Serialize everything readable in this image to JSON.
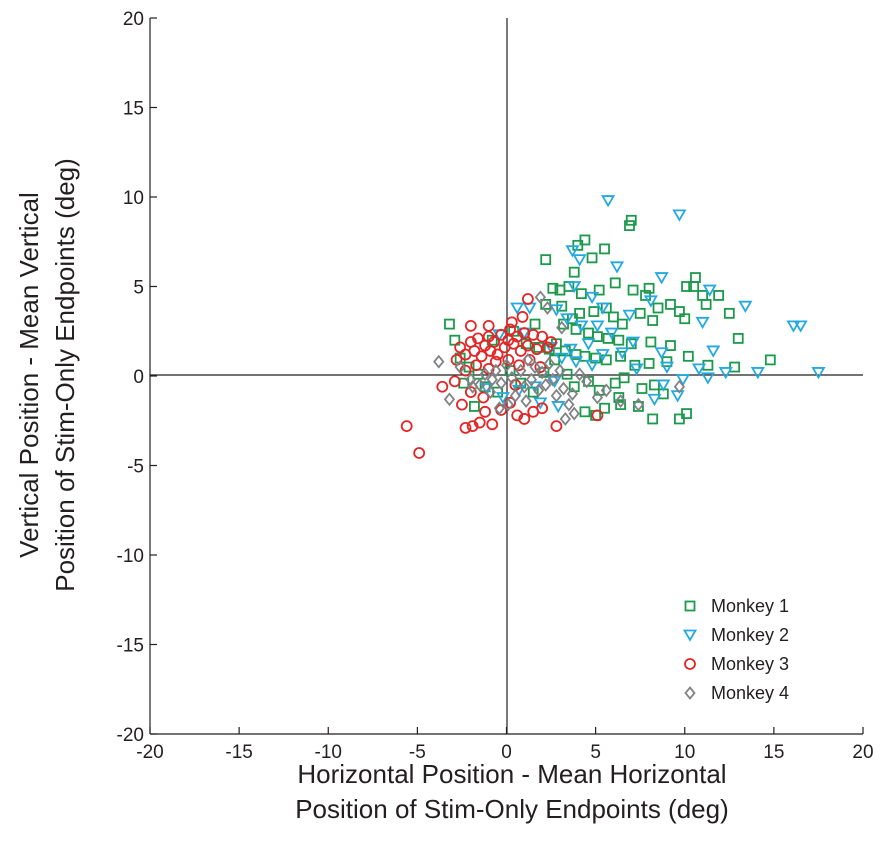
{
  "chart_data": {
    "type": "scatter",
    "xlim": [
      -20,
      20
    ],
    "ylim": [
      -20,
      20
    ],
    "xticks": [
      -20,
      -15,
      -10,
      -5,
      0,
      5,
      10,
      15,
      20
    ],
    "yticks": [
      -20,
      -15,
      -10,
      -5,
      0,
      5,
      10,
      15,
      20
    ],
    "xlabel": [
      "Horizontal Position - Mean Horizontal",
      "Position of Stim-Only Endpoints (deg)"
    ],
    "ylabel": [
      "Vertical Position - Mean Vertical",
      "Position of Stim-Only Endpoints (deg)"
    ],
    "reference_lines": {
      "x": 0,
      "y": 0
    },
    "legend_position": "bottom-right",
    "series": [
      {
        "name": "Monkey 1",
        "marker": "square",
        "color": "#1a9a4a",
        "points": [
          [
            4.4,
            7.6
          ],
          [
            6.9,
            8.4
          ],
          [
            7.0,
            8.7
          ],
          [
            4.0,
            7.3
          ],
          [
            2.2,
            6.5
          ],
          [
            4.8,
            6.6
          ],
          [
            5.5,
            7.1
          ],
          [
            3.8,
            5.8
          ],
          [
            3.5,
            5.0
          ],
          [
            2.6,
            4.9
          ],
          [
            3.0,
            4.8
          ],
          [
            4.2,
            4.6
          ],
          [
            5.2,
            4.8
          ],
          [
            6.1,
            5.2
          ],
          [
            7.1,
            4.8
          ],
          [
            7.8,
            4.5
          ],
          [
            8.0,
            4.9
          ],
          [
            8.5,
            3.8
          ],
          [
            9.2,
            4.0
          ],
          [
            10.1,
            5.0
          ],
          [
            10.6,
            5.5
          ],
          [
            10.5,
            5.0
          ],
          [
            11.0,
            4.5
          ],
          [
            11.9,
            4.5
          ],
          [
            11.2,
            4.0
          ],
          [
            12.5,
            3.5
          ],
          [
            2.2,
            4.0
          ],
          [
            3.1,
            3.9
          ],
          [
            3.7,
            3.2
          ],
          [
            4.1,
            3.5
          ],
          [
            4.9,
            3.6
          ],
          [
            5.6,
            3.8
          ],
          [
            6.0,
            3.3
          ],
          [
            6.5,
            2.9
          ],
          [
            7.5,
            3.5
          ],
          [
            8.2,
            3.1
          ],
          [
            9.7,
            3.6
          ],
          [
            10.0,
            3.2
          ],
          [
            3.2,
            2.9
          ],
          [
            3.9,
            2.6
          ],
          [
            4.6,
            2.4
          ],
          [
            5.1,
            2.2
          ],
          [
            5.7,
            2.1
          ],
          [
            6.3,
            2.0
          ],
          [
            7.0,
            1.8
          ],
          [
            8.1,
            1.9
          ],
          [
            9.2,
            1.7
          ],
          [
            1.1,
            1.8
          ],
          [
            1.8,
            1.6
          ],
          [
            2.4,
            1.5
          ],
          [
            2.8,
            1.8
          ],
          [
            3.3,
            1.4
          ],
          [
            3.9,
            1.2
          ],
          [
            4.4,
            1.1
          ],
          [
            5.0,
            1.0
          ],
          [
            5.6,
            0.9
          ],
          [
            6.4,
            1.1
          ],
          [
            7.2,
            0.6
          ],
          [
            8.0,
            0.7
          ],
          [
            9.0,
            0.8
          ],
          [
            10.2,
            1.1
          ],
          [
            11.3,
            0.6
          ],
          [
            12.8,
            0.5
          ],
          [
            14.8,
            0.9
          ],
          [
            13.0,
            2.1
          ],
          [
            -3.2,
            2.9
          ],
          [
            -2.9,
            2.0
          ],
          [
            -2.6,
            1.0
          ],
          [
            -2.1,
            0.5
          ],
          [
            -1.6,
            0.1
          ],
          [
            -2.4,
            -0.4
          ],
          [
            -1.8,
            -1.7
          ],
          [
            -1.2,
            -0.6
          ],
          [
            -0.5,
            -0.9
          ],
          [
            0.2,
            0.3
          ],
          [
            0.8,
            -0.4
          ],
          [
            1.5,
            -0.9
          ],
          [
            2.1,
            0.2
          ],
          [
            2.7,
            0.9
          ],
          [
            3.4,
            0.1
          ],
          [
            3.8,
            -0.6
          ],
          [
            4.6,
            -0.3
          ],
          [
            5.2,
            -0.8
          ],
          [
            6.1,
            -0.4
          ],
          [
            6.6,
            -0.1
          ],
          [
            7.6,
            -0.7
          ],
          [
            8.3,
            -0.5
          ],
          [
            8.8,
            -1.0
          ],
          [
            5.5,
            -1.8
          ],
          [
            6.4,
            -1.6
          ],
          [
            7.4,
            -1.7
          ],
          [
            4.4,
            -2.0
          ],
          [
            5.0,
            -2.2
          ],
          [
            9.7,
            -2.4
          ],
          [
            10.1,
            -2.1
          ],
          [
            8.2,
            -2.4
          ],
          [
            6.3,
            -1.2
          ],
          [
            -0.8,
            2.0
          ],
          [
            0.4,
            2.5
          ],
          [
            1.6,
            2.9
          ]
        ]
      },
      {
        "name": "Monkey 2",
        "marker": "triangle-down",
        "color": "#23a9e1",
        "points": [
          [
            5.7,
            9.8
          ],
          [
            9.7,
            9.0
          ],
          [
            3.7,
            7.0
          ],
          [
            6.2,
            6.1
          ],
          [
            4.1,
            6.5
          ],
          [
            8.7,
            5.5
          ],
          [
            11.4,
            4.8
          ],
          [
            3.8,
            5.0
          ],
          [
            4.8,
            4.4
          ],
          [
            8.1,
            4.2
          ],
          [
            13.4,
            3.9
          ],
          [
            5.4,
            3.8
          ],
          [
            6.9,
            3.4
          ],
          [
            11.0,
            3.0
          ],
          [
            16.1,
            2.8
          ],
          [
            16.5,
            2.8
          ],
          [
            0.6,
            3.8
          ],
          [
            1.3,
            3.8
          ],
          [
            2.8,
            3.7
          ],
          [
            3.4,
            3.2
          ],
          [
            4.2,
            2.8
          ],
          [
            5.1,
            2.8
          ],
          [
            5.9,
            2.4
          ],
          [
            7.1,
            1.9
          ],
          [
            4.6,
            1.8
          ],
          [
            3.6,
            1.5
          ],
          [
            2.5,
            1.6
          ],
          [
            3.1,
            1.0
          ],
          [
            5.4,
            1.2
          ],
          [
            6.5,
            1.3
          ],
          [
            8.7,
            1.3
          ],
          [
            11.6,
            1.4
          ],
          [
            3.9,
            0.8
          ],
          [
            4.8,
            0.6
          ],
          [
            7.3,
            0.4
          ],
          [
            9.0,
            0.5
          ],
          [
            10.8,
            0.4
          ],
          [
            12.3,
            0.2
          ],
          [
            14.1,
            0.2
          ],
          [
            17.5,
            0.2
          ],
          [
            11.3,
            -0.1
          ],
          [
            9.9,
            -0.2
          ],
          [
            8.8,
            -0.5
          ],
          [
            2.7,
            -0.3
          ],
          [
            1.6,
            -0.6
          ],
          [
            0.7,
            -0.8
          ],
          [
            -0.2,
            -1.2
          ],
          [
            1.9,
            -1.5
          ],
          [
            2.9,
            -1.7
          ],
          [
            9.6,
            -1.1
          ],
          [
            8.3,
            -1.3
          ],
          [
            -1.1,
            -0.7
          ],
          [
            -0.4,
            2.3
          ],
          [
            1.0,
            2.4
          ]
        ]
      },
      {
        "name": "Monkey 3",
        "marker": "circle",
        "color": "#e32526",
        "points": [
          [
            -5.6,
            -2.8
          ],
          [
            -4.9,
            -4.3
          ],
          [
            -3.6,
            -0.6
          ],
          [
            -2.9,
            -0.3
          ],
          [
            -2.5,
            -1.6
          ],
          [
            -2.3,
            -2.9
          ],
          [
            -1.9,
            -2.8
          ],
          [
            -1.5,
            -2.6
          ],
          [
            -1.2,
            -2.0
          ],
          [
            -0.8,
            -2.7
          ],
          [
            -0.3,
            -1.9
          ],
          [
            0.2,
            -1.5
          ],
          [
            0.6,
            -2.2
          ],
          [
            1.0,
            -2.4
          ],
          [
            1.5,
            -2.0
          ],
          [
            2.0,
            -1.8
          ],
          [
            2.8,
            -2.8
          ],
          [
            5.1,
            -2.2
          ],
          [
            -2.8,
            0.9
          ],
          [
            -2.6,
            1.6
          ],
          [
            -2.3,
            1.2
          ],
          [
            -2.0,
            1.9
          ],
          [
            -1.8,
            1.4
          ],
          [
            -1.6,
            2.1
          ],
          [
            -1.4,
            1.1
          ],
          [
            -1.2,
            1.7
          ],
          [
            -1.0,
            2.2
          ],
          [
            -0.9,
            1.4
          ],
          [
            -0.7,
            1.9
          ],
          [
            -0.5,
            1.2
          ],
          [
            -0.3,
            2.3
          ],
          [
            -0.1,
            1.6
          ],
          [
            0.1,
            2.0
          ],
          [
            0.2,
            2.6
          ],
          [
            0.4,
            1.8
          ],
          [
            0.6,
            2.2
          ],
          [
            0.8,
            1.4
          ],
          [
            1.0,
            2.4
          ],
          [
            1.2,
            1.7
          ],
          [
            1.5,
            2.3
          ],
          [
            1.7,
            1.5
          ],
          [
            2.0,
            2.2
          ],
          [
            2.3,
            1.6
          ],
          [
            2.5,
            1.9
          ],
          [
            0.3,
            3.0
          ],
          [
            0.9,
            3.3
          ],
          [
            1.2,
            4.3
          ],
          [
            -1.0,
            2.8
          ],
          [
            -2.0,
            2.8
          ],
          [
            -2.3,
            0.3
          ],
          [
            -1.7,
            0.6
          ],
          [
            -1.0,
            0.4
          ],
          [
            -0.6,
            0.8
          ],
          [
            0.1,
            0.9
          ],
          [
            0.7,
            0.6
          ],
          [
            1.3,
            0.9
          ],
          [
            1.9,
            0.5
          ],
          [
            -2.0,
            -0.9
          ],
          [
            -1.3,
            -1.2
          ],
          [
            0.5,
            -0.5
          ]
        ]
      },
      {
        "name": "Monkey 4",
        "marker": "diamond",
        "color": "#808285",
        "points": [
          [
            -3.8,
            0.8
          ],
          [
            -3.2,
            -1.3
          ],
          [
            -2.6,
            0.5
          ],
          [
            -2.0,
            -0.2
          ],
          [
            -1.5,
            -0.5
          ],
          [
            -1.2,
            0.1
          ],
          [
            -0.9,
            -0.9
          ],
          [
            -0.6,
            0.3
          ],
          [
            -0.3,
            -0.4
          ],
          [
            0.0,
            0.6
          ],
          [
            0.3,
            -0.1
          ],
          [
            0.5,
            -1.1
          ],
          [
            0.8,
            0.3
          ],
          [
            1.0,
            -0.6
          ],
          [
            1.2,
            0.9
          ],
          [
            1.4,
            -0.2
          ],
          [
            1.6,
            0.5
          ],
          [
            1.8,
            -0.8
          ],
          [
            2.0,
            0.2
          ],
          [
            2.2,
            -0.5
          ],
          [
            2.4,
            0.7
          ],
          [
            2.6,
            -0.2
          ],
          [
            2.8,
            -1.1
          ],
          [
            3.0,
            0.3
          ],
          [
            3.2,
            -0.7
          ],
          [
            3.5,
            -1.6
          ],
          [
            3.8,
            -2.1
          ],
          [
            3.7,
            -1.0
          ],
          [
            4.1,
            0.1
          ],
          [
            4.5,
            -0.3
          ],
          [
            5.1,
            -1.2
          ],
          [
            5.6,
            -0.8
          ],
          [
            6.4,
            -1.4
          ],
          [
            7.4,
            -1.6
          ],
          [
            9.7,
            -0.6
          ],
          [
            2.3,
            3.8
          ],
          [
            1.9,
            4.4
          ],
          [
            3.1,
            2.7
          ],
          [
            -0.4,
            -1.8
          ],
          [
            0.1,
            -1.6
          ],
          [
            1.1,
            -1.4
          ],
          [
            3.3,
            -2.4
          ],
          [
            -1.9,
            -0.6
          ],
          [
            -0.8,
            -0.2
          ]
        ]
      }
    ]
  }
}
